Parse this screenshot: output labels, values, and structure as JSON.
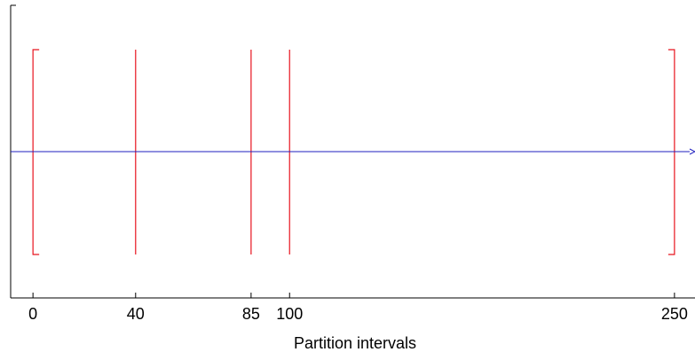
{
  "chart_data": {
    "type": "number-line",
    "xlabel": "Partition intervals",
    "xlim": [
      -8.7,
      258
    ],
    "ticks": [
      {
        "value": 0,
        "label": "0"
      },
      {
        "value": 40,
        "label": "40"
      },
      {
        "value": 85,
        "label": "85"
      },
      {
        "value": 100,
        "label": "100"
      },
      {
        "value": 250,
        "label": "250"
      }
    ],
    "partition_boundaries": [
      {
        "value": 0,
        "kind": "closed-left-bracket"
      },
      {
        "value": 40,
        "kind": "line"
      },
      {
        "value": 85,
        "kind": "line"
      },
      {
        "value": 100,
        "kind": "line"
      },
      {
        "value": 250,
        "kind": "closed-right-bracket"
      }
    ],
    "number_line_arrow": "right",
    "grid": false,
    "colors": {
      "partition": "#e8141e",
      "number_line": "#1f1fbf",
      "axes": "#000000",
      "text": "#000000"
    }
  }
}
